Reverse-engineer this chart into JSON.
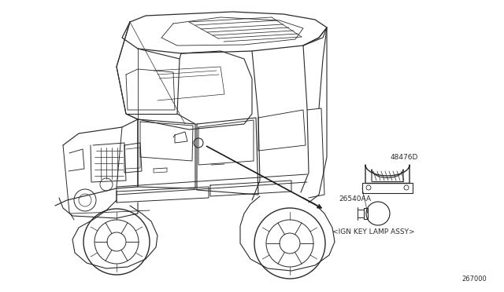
{
  "bg_color": "#ffffff",
  "fig_width": 6.4,
  "fig_height": 3.72,
  "dpi": 100,
  "part_number_1": "48476D",
  "part_number_2": "26540AA",
  "part_label": "<IGN KEY LAMP ASSY>",
  "ref_number": "267000",
  "line_color": "#2a2a2a",
  "text_color": "#2a2a2a",
  "font_size_parts": 6.5,
  "font_size_label": 6.5,
  "font_size_ref": 6.0
}
